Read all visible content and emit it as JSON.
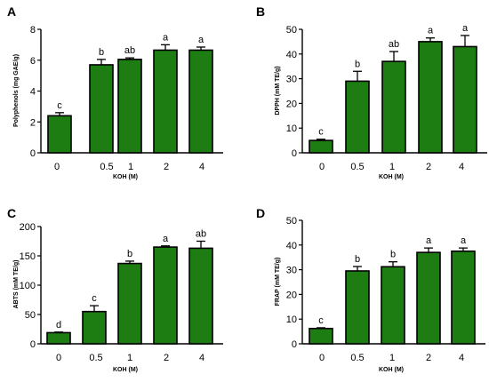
{
  "colors": {
    "bar": "#1e7d12",
    "edge": "#000000"
  },
  "chart_data": [
    {
      "panel": "A",
      "type": "bar",
      "categories": [
        "0",
        "0.5",
        "1",
        "2",
        "4"
      ],
      "values": [
        2.4,
        5.7,
        6.05,
        6.65,
        6.65
      ],
      "errors": [
        0.2,
        0.35,
        0.1,
        0.35,
        0.2
      ],
      "labels": [
        "c",
        "b",
        "ab",
        "a",
        "a"
      ],
      "xlabel": "KOH (M)",
      "ylabel": "Polyphenols (mg GAE/g)",
      "ylim": [
        0,
        8
      ],
      "yticks": [
        0,
        2,
        4,
        6,
        8
      ],
      "grid": false
    },
    {
      "panel": "B",
      "type": "bar",
      "categories": [
        "0",
        "0.5",
        "1",
        "2",
        "4"
      ],
      "values": [
        5,
        29,
        37,
        45,
        43
      ],
      "errors": [
        0.5,
        4,
        4,
        1.5,
        4.5
      ],
      "labels": [
        "c",
        "b",
        "ab",
        "a",
        "a"
      ],
      "xlabel": "KOH (M)",
      "ylabel": "DPPH (mM TE/g)",
      "ylim": [
        0,
        50
      ],
      "yticks": [
        0,
        10,
        20,
        30,
        40,
        50
      ],
      "grid": false
    },
    {
      "panel": "C",
      "type": "bar",
      "categories": [
        "0",
        "0.5",
        "1",
        "2",
        "4"
      ],
      "values": [
        19,
        55,
        137,
        165,
        163
      ],
      "errors": [
        1,
        10,
        4,
        2,
        12
      ],
      "labels": [
        "d",
        "c",
        "b",
        "a",
        "ab"
      ],
      "xlabel": "KOH (M)",
      "ylabel": "ABTS (mM TE/g)",
      "ylim": [
        0,
        200
      ],
      "yticks": [
        0,
        50,
        100,
        150,
        200
      ],
      "grid": false
    },
    {
      "panel": "D",
      "type": "bar",
      "categories": [
        "0",
        "0.5",
        "1",
        "2",
        "4"
      ],
      "values": [
        6.2,
        29.5,
        31.2,
        37,
        37.5
      ],
      "errors": [
        0.3,
        1.8,
        2,
        1.8,
        1.3
      ],
      "labels": [
        "c",
        "b",
        "b",
        "a",
        "a"
      ],
      "xlabel": "KOH (M)",
      "ylabel": "FRAP (mM TE/g)",
      "ylim": [
        0,
        50
      ],
      "yticks": [
        0,
        10,
        20,
        30,
        40,
        50
      ],
      "grid": false
    }
  ]
}
